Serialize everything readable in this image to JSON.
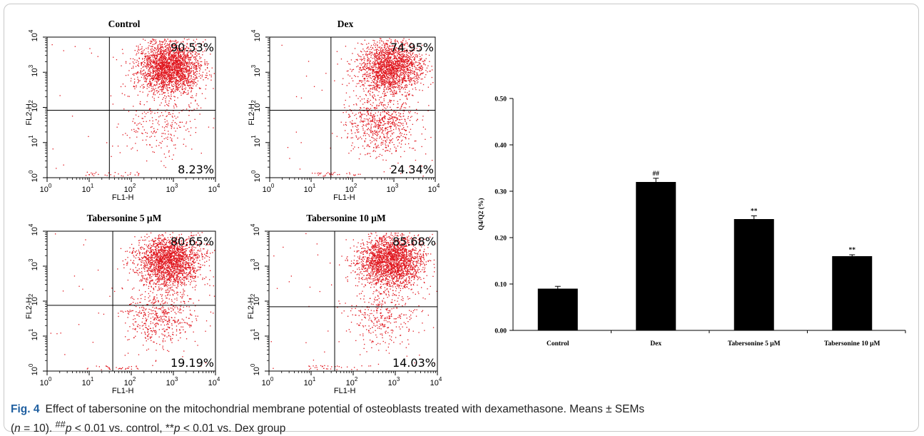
{
  "flow_panels": [
    {
      "title": "Control",
      "q_upper_right": "90.53%",
      "q_lower_right": "8.23%",
      "xlabel": "FL1-H",
      "ylabel": "FL2-H"
    },
    {
      "title": "Dex",
      "q_upper_right": "74.95%",
      "q_lower_right": "24.34%",
      "xlabel": "FL1-H",
      "ylabel": "FL2-H"
    },
    {
      "title": "Tabersonine 5 μM",
      "q_upper_right": "80.65%",
      "q_lower_right": "19.19%",
      "xlabel": "FL1-H",
      "ylabel": "FL2-H"
    },
    {
      "title": "Tabersonine 10 μM",
      "q_upper_right": "85.68%",
      "q_lower_right": "14.03%",
      "xlabel": "FL1-H",
      "ylabel": "FL2-H"
    }
  ],
  "flow_axis": {
    "x_ticks": [
      "10",
      "10",
      "10",
      "10",
      "10"
    ],
    "x_exp": [
      "0",
      "1",
      "2",
      "3",
      "4"
    ],
    "y_ticks": [
      "10",
      "10",
      "10",
      "10",
      "10"
    ],
    "y_exp": [
      "0",
      "1",
      "2",
      "3",
      "4"
    ],
    "dot_color": "#e0141c"
  },
  "chart_data": {
    "type": "bar",
    "categories": [
      "Control",
      "Dex",
      "Tabersonine 5 μM",
      "Tabersonine 10 μM"
    ],
    "values": [
      0.09,
      0.32,
      0.24,
      0.16
    ],
    "errors": [
      0.005,
      0.008,
      0.007,
      0.003
    ],
    "annotations": [
      "",
      "##",
      "**",
      "**"
    ],
    "ylabel": "Q4/Q2 (%)",
    "ylim": [
      0,
      0.5
    ],
    "yticks": [
      "0.00",
      "0.10",
      "0.20",
      "0.30",
      "0.40",
      "0.50"
    ],
    "bar_color": "#000000",
    "grid": false
  },
  "caption": {
    "label": "Fig. 4",
    "line1": "Effect of tabersonine on the mitochondrial membrane potential of osteoblasts treated with dexamethasone. Means ± SEMs",
    "line2_a": "(",
    "line2_n": "n",
    "line2_b": " = 10). ",
    "line2_sup1": "##",
    "line2_p1": "p",
    "line2_c": " < 0.01 vs. control, **",
    "line2_p2": "p",
    "line2_d": " < 0.01 vs. Dex group"
  }
}
